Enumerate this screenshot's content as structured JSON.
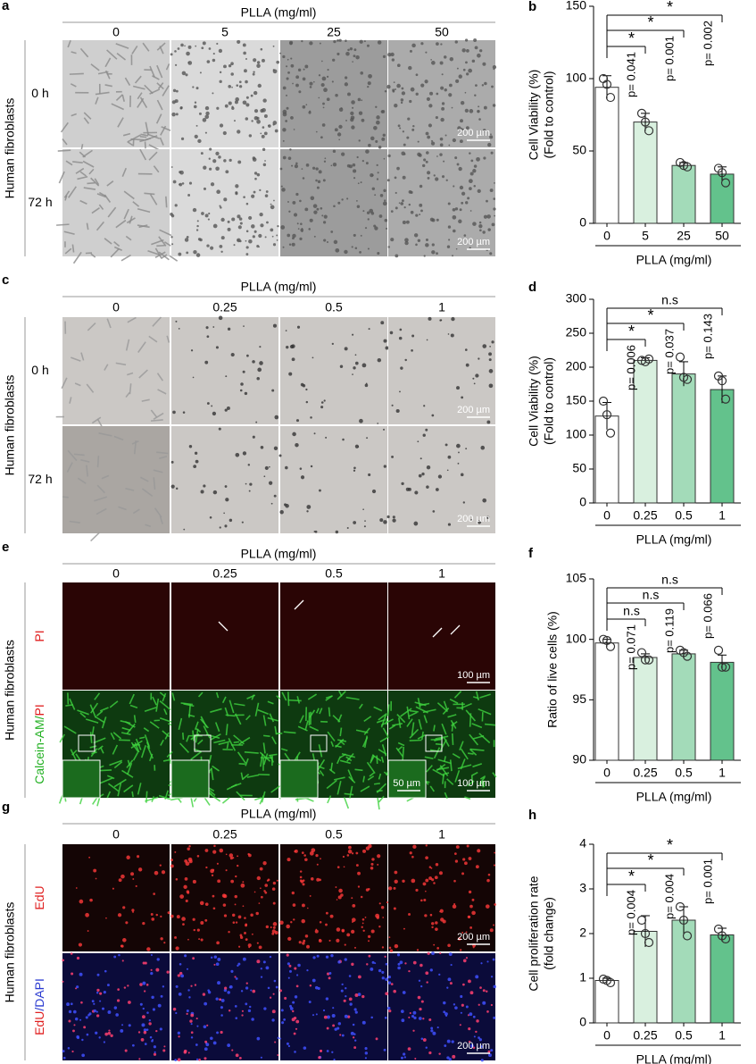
{
  "panels": [
    {
      "letter": "a",
      "header": "PLLA (mg/ml)",
      "columns": [
        "0",
        "5",
        "25",
        "50"
      ],
      "side_label": "Human fibroblasts",
      "rows": [
        [
          {
            "text": "0 h",
            "color": "#000000"
          }
        ],
        [
          {
            "text": "72 h",
            "color": "#000000"
          }
        ]
      ],
      "scale_bars": [
        [
          "200 µm"
        ],
        [
          "200 µm"
        ]
      ]
    },
    {
      "letter": "c",
      "header": "PLLA (mg/ml)",
      "columns": [
        "0",
        "0.25",
        "0.5",
        "1"
      ],
      "side_label": "Human fibroblasts",
      "rows": [
        [
          {
            "text": "0 h",
            "color": "#000000"
          }
        ],
        [
          {
            "text": "72 h",
            "color": "#000000"
          }
        ]
      ],
      "scale_bars": [
        [
          "200 µm"
        ],
        [
          "200 µm"
        ]
      ]
    },
    {
      "letter": "e",
      "header": "PLLA (mg/ml)",
      "columns": [
        "0",
        "0.25",
        "0.5",
        "1"
      ],
      "side_label": "Human fibroblasts",
      "rows": [
        [
          {
            "text": "PI",
            "color": "#e02020"
          }
        ],
        [
          {
            "text": "Calcein-AM/",
            "color": "#22b022"
          },
          {
            "text": "PI",
            "color": "#e02020"
          }
        ]
      ],
      "scale_bars": [
        [
          "100 µm"
        ],
        [
          "50 µm",
          "100 µm"
        ]
      ]
    },
    {
      "letter": "g",
      "header": "PLLA (mg/ml)",
      "columns": [
        "0",
        "0.25",
        "0.5",
        "1"
      ],
      "side_label": "Human fibroblasts",
      "rows": [
        [
          {
            "text": "EdU",
            "color": "#e02020"
          }
        ],
        [
          {
            "text": "EdU",
            "color": "#e02020"
          },
          {
            "text": "/DAPI",
            "color": "#2a3ad0"
          }
        ]
      ],
      "scale_bars": [
        [
          "200 µm"
        ],
        [
          "200 µm"
        ]
      ]
    }
  ],
  "chart_data": [
    {
      "type": "bar",
      "panel_label": "b",
      "y_label": [
        "Cell Viability (%)",
        "(Fold to control)"
      ],
      "x_label": "PLLA (mg/ml)",
      "categories": [
        "0",
        "5",
        "25",
        "50"
      ],
      "values": [
        94,
        70,
        40,
        34
      ],
      "errors": [
        8,
        6,
        2,
        5
      ],
      "points": [
        [
          100,
          96,
          87
        ],
        [
          76,
          70,
          64
        ],
        [
          42,
          40,
          39
        ],
        [
          38,
          35,
          28
        ]
      ],
      "colors": [
        "#ffffff",
        "#d9f0df",
        "#a3dbb9",
        "#63c28c"
      ],
      "ylim": [
        0,
        150
      ],
      "yticks": [
        0,
        50,
        100,
        150
      ],
      "comparisons": [
        {
          "label": "*",
          "p": "p= 0.041"
        },
        {
          "label": "*",
          "p": "p= 0.001"
        },
        {
          "label": "*",
          "p": "p= 0.002"
        }
      ]
    },
    {
      "type": "bar",
      "panel_label": "d",
      "y_label": [
        "Cell Viability (%)",
        "(Fold to control)"
      ],
      "x_label": "PLLA (mg/ml)",
      "categories": [
        "0",
        "0.25",
        "0.5",
        "1"
      ],
      "values": [
        128,
        210,
        190,
        167
      ],
      "errors": [
        20,
        4,
        18,
        20
      ],
      "points": [
        [
          150,
          130,
          103
        ],
        [
          210,
          208,
          212
        ],
        [
          215,
          185,
          182
        ],
        [
          187,
          180,
          153
        ]
      ],
      "colors": [
        "#ffffff",
        "#d9f0df",
        "#a3dbb9",
        "#63c28c"
      ],
      "ylim": [
        0,
        300
      ],
      "yticks": [
        0,
        50,
        100,
        150,
        200,
        250,
        300
      ],
      "comparisons": [
        {
          "label": "*",
          "p": "p= 0.006"
        },
        {
          "label": "*",
          "p": "p= 0.037"
        },
        {
          "label": "n.s",
          "p": "p= 0.143"
        }
      ]
    },
    {
      "type": "bar",
      "panel_label": "f",
      "y_label": [
        "Ratio of live cells (%)"
      ],
      "x_label": "PLLA (mg/ml)",
      "categories": [
        "0",
        "0.25",
        "0.5",
        "1"
      ],
      "values": [
        99.7,
        98.5,
        98.8,
        98.1
      ],
      "errors": [
        0.3,
        0.3,
        0.3,
        0.6
      ],
      "points": [
        [
          100,
          99.9,
          99.4
        ],
        [
          98.9,
          98.3,
          98.3
        ],
        [
          99.1,
          98.9,
          98.6
        ],
        [
          99.1,
          97.7,
          97.7
        ]
      ],
      "colors": [
        "#ffffff",
        "#d9f0df",
        "#a3dbb9",
        "#63c28c"
      ],
      "ylim": [
        90,
        105
      ],
      "yticks": [
        90,
        95,
        100,
        105
      ],
      "comparisons": [
        {
          "label": "n.s",
          "p": "p= 0.071"
        },
        {
          "label": "n.s",
          "p": "p= 0.119"
        },
        {
          "label": "n.s",
          "p": "p= 0.066"
        }
      ]
    },
    {
      "type": "bar",
      "panel_label": "h",
      "y_label": [
        "Cell proliferation rate",
        "(fold change)"
      ],
      "x_label": "PLLA (mg/ml)",
      "categories": [
        "0",
        "0.25",
        "0.5",
        "1"
      ],
      "values": [
        0.95,
        2.05,
        2.3,
        1.97
      ],
      "errors": [
        0.05,
        0.35,
        0.3,
        0.15
      ],
      "points": [
        [
          0.98,
          0.95,
          0.9
        ],
        [
          2.3,
          2.0,
          1.8
        ],
        [
          2.6,
          2.3,
          1.95
        ],
        [
          2.1,
          1.95,
          1.88
        ]
      ],
      "colors": [
        "#ffffff",
        "#d9f0df",
        "#a3dbb9",
        "#63c28c"
      ],
      "ylim": [
        0,
        4
      ],
      "yticks": [
        0,
        1,
        2,
        3,
        4
      ],
      "comparisons": [
        {
          "label": "*",
          "p": "p= 0.004"
        },
        {
          "label": "*",
          "p": "p= 0.004"
        },
        {
          "label": "*",
          "p": "p= 0.001"
        }
      ]
    }
  ]
}
